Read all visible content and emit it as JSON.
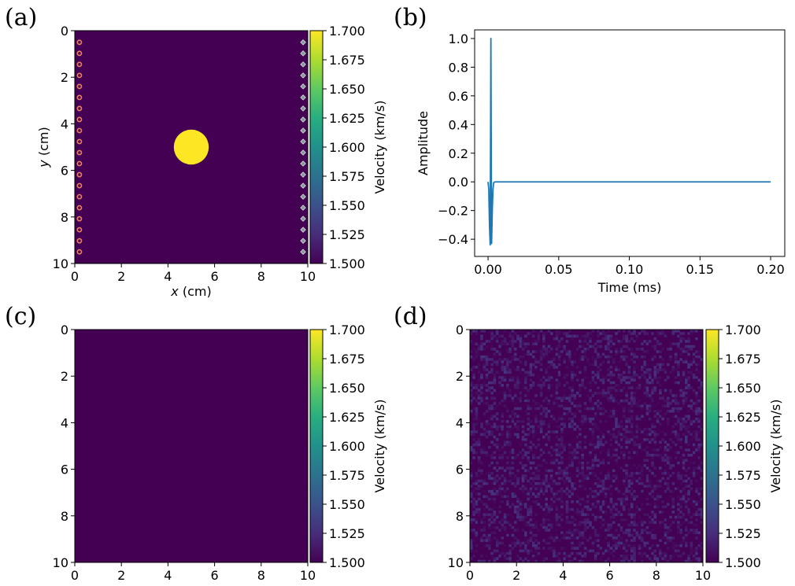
{
  "panel_labels": [
    "(a)",
    "(b)",
    "(c)",
    "(d)"
  ],
  "colors": {
    "viridis_low": "#440154",
    "viridis_high": "#fde725",
    "line": "#1f77b4",
    "source_marker": "#f08060",
    "receiver_marker": "#7f9a9a"
  },
  "chart_data": [
    {
      "panel": "(a)",
      "type": "heatmap",
      "title": "",
      "xlabel_var": "x",
      "xlabel_unit": " (cm)",
      "ylabel_var": "y",
      "ylabel_unit": " (cm)",
      "xlim": [
        0,
        10
      ],
      "ylim": [
        10,
        0
      ],
      "x_ticks": [
        "0",
        "2",
        "4",
        "6",
        "8",
        "10"
      ],
      "y_ticks": [
        "0",
        "2",
        "4",
        "6",
        "8",
        "10"
      ],
      "background_velocity": 1.5,
      "inclusion": {
        "shape": "circle",
        "center_x": 5.0,
        "center_y": 5.0,
        "radius": 0.75,
        "velocity": 1.7
      },
      "sources": {
        "x": 0.2,
        "y_start": 0.5,
        "y_end": 9.5,
        "count": 20,
        "marker": "circle"
      },
      "receivers": {
        "x": 9.8,
        "y_start": 0.5,
        "y_end": 9.5,
        "count": 20,
        "marker": "diamond"
      },
      "colorbar": {
        "label": "Velocity (km/s)",
        "range": [
          1.5,
          1.7
        ],
        "ticks": [
          "1.700",
          "1.675",
          "1.650",
          "1.625",
          "1.600",
          "1.575",
          "1.550",
          "1.525",
          "1.500"
        ]
      }
    },
    {
      "panel": "(b)",
      "type": "line",
      "title": "",
      "xlabel": "Time (ms)",
      "ylabel": "Amplitude",
      "xlim": [
        -0.0095,
        0.21
      ],
      "ylim": [
        -0.52,
        1.06
      ],
      "x_ticks": [
        {
          "value": 0,
          "label": "0.00"
        },
        {
          "value": 0.05,
          "label": "0.05"
        },
        {
          "value": 0.1,
          "label": "0.10"
        },
        {
          "value": 0.15,
          "label": "0.15"
        },
        {
          "value": 0.2,
          "label": "0.20"
        }
      ],
      "y_ticks": [
        {
          "value": 1.0,
          "label": "1.0"
        },
        {
          "value": 0.8,
          "label": "0.8"
        },
        {
          "value": 0.6,
          "label": "0.6"
        },
        {
          "value": 0.4,
          "label": "0.4"
        },
        {
          "value": 0.2,
          "label": "0.2"
        },
        {
          "value": 0.0,
          "label": "0.0"
        },
        {
          "value": -0.2,
          "label": "−0.2"
        },
        {
          "value": -0.4,
          "label": "−0.4"
        }
      ],
      "series": [
        {
          "x": [
            0,
            0.0005,
            0.001,
            0.0015,
            0.002,
            0.0025,
            0.003,
            0.0035,
            0.004,
            0.005,
            0.006,
            0.2
          ],
          "y": [
            0,
            -0.05,
            -0.3,
            -0.44,
            1.0,
            -0.43,
            -0.2,
            -0.05,
            -0.005,
            0,
            0,
            0
          ]
        }
      ]
    },
    {
      "panel": "(c)",
      "type": "heatmap",
      "title": "",
      "xlim": [
        0,
        10
      ],
      "ylim": [
        10,
        0
      ],
      "x_ticks": [
        "0",
        "2",
        "4",
        "6",
        "8",
        "10"
      ],
      "y_ticks": [
        "0",
        "2",
        "4",
        "6",
        "8",
        "10"
      ],
      "background_velocity": 1.5,
      "colorbar": {
        "label": "Velocity (km/s)",
        "range": [
          1.5,
          1.7
        ],
        "ticks": [
          "1.700",
          "1.675",
          "1.650",
          "1.625",
          "1.600",
          "1.575",
          "1.550",
          "1.525",
          "1.500"
        ]
      }
    },
    {
      "panel": "(d)",
      "type": "heatmap",
      "title": "",
      "xlim": [
        0,
        10
      ],
      "ylim": [
        10,
        0
      ],
      "x_ticks": [
        "0",
        "2",
        "4",
        "6",
        "8",
        "10"
      ],
      "y_ticks": [
        "0",
        "2",
        "4",
        "6",
        "8",
        "10"
      ],
      "background_velocity": 1.5,
      "noise_level_max": 1.53,
      "colorbar": {
        "label": "Velocity (km/s)",
        "range": [
          1.5,
          1.7
        ],
        "ticks": [
          "1.700",
          "1.675",
          "1.650",
          "1.625",
          "1.600",
          "1.575",
          "1.550",
          "1.525",
          "1.500"
        ]
      }
    }
  ]
}
